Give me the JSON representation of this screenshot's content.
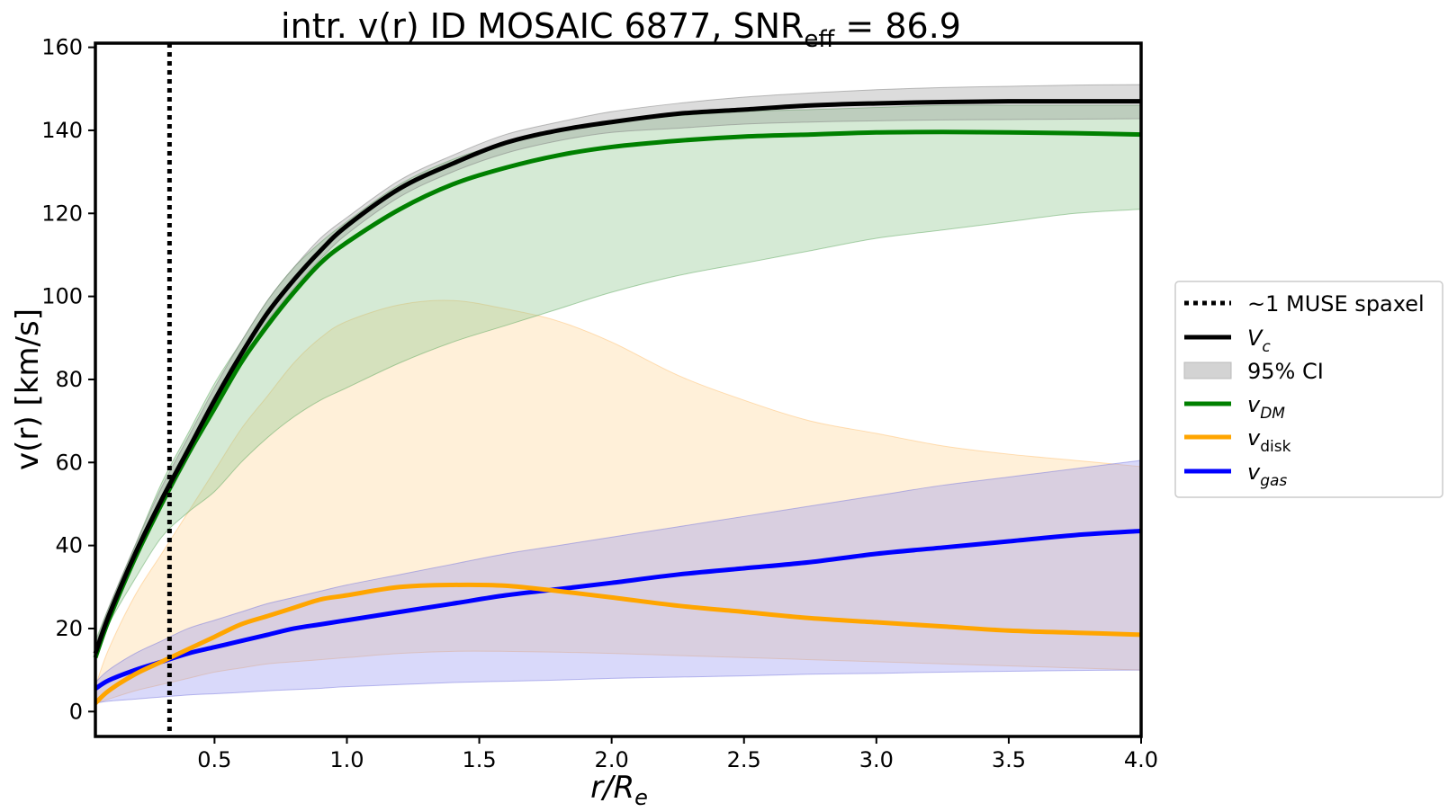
{
  "chart_data": {
    "type": "line",
    "title": "intr. v(r) ID MOSAIC 6877, SNR",
    "title_sub": "eff",
    "title_tail": " = 86.9",
    "xlabel_main": "r/R",
    "xlabel_sub": "e",
    "ylabel": "v(r) [km/s]",
    "xlim": [
      0.05,
      4.0
    ],
    "ylim": [
      -6,
      161
    ],
    "xticks": [
      0.5,
      1.0,
      1.5,
      2.0,
      2.5,
      3.0,
      3.5,
      4.0
    ],
    "xtick_labels": [
      "0.5",
      "1.0",
      "1.5",
      "2.0",
      "2.5",
      "3.0",
      "3.5",
      "4.0"
    ],
    "yticks": [
      0,
      20,
      40,
      60,
      80,
      100,
      120,
      140,
      160
    ],
    "ytick_labels": [
      "0",
      "20",
      "40",
      "60",
      "80",
      "100",
      "120",
      "140",
      "160"
    ],
    "muse_spaxel_x": 0.33,
    "x": [
      0.05,
      0.1,
      0.2,
      0.3,
      0.4,
      0.5,
      0.6,
      0.7,
      0.8,
      0.9,
      1.0,
      1.2,
      1.4,
      1.6,
      1.8,
      2.0,
      2.25,
      2.5,
      2.75,
      3.0,
      3.25,
      3.5,
      3.75,
      4.0
    ],
    "series": [
      {
        "name": "V_c",
        "key": "vc",
        "color": "#000000",
        "values": [
          14,
          23,
          38,
          51,
          63,
          75,
          86,
          96,
          104,
          111,
          117,
          126,
          132,
          137,
          140,
          142,
          144,
          145,
          146,
          146.5,
          146.8,
          147,
          147,
          147
        ],
        "ci_low": [
          13,
          21,
          36,
          49,
          61,
          73,
          84,
          94,
          102,
          109,
          115,
          124,
          130,
          134.5,
          137.5,
          139.5,
          140.5,
          141.5,
          142,
          142.3,
          142.5,
          142.6,
          142.7,
          142.8
        ],
        "ci_high": [
          16,
          25,
          40,
          54,
          66,
          78,
          89,
          99,
          107,
          114,
          119,
          128,
          134,
          139,
          142,
          144.5,
          146.5,
          148,
          149,
          149.8,
          150.3,
          150.6,
          150.9,
          151
        ]
      },
      {
        "name": "v_DM",
        "key": "vdm",
        "color": "#008000",
        "band_color": "#90c890",
        "values": [
          13,
          22,
          37,
          50,
          62,
          73,
          84,
          93,
          101,
          108,
          113,
          121,
          127,
          131,
          134,
          136,
          137.5,
          138.5,
          139,
          139.5,
          139.6,
          139.5,
          139.3,
          139
        ],
        "ci_low": [
          13,
          21,
          32,
          42,
          48,
          53,
          60,
          66,
          71,
          75,
          78,
          84,
          89,
          93,
          97,
          101,
          105,
          108,
          111,
          114,
          116,
          118,
          120,
          121
        ],
        "ci_high": [
          17,
          25,
          40,
          55,
          67,
          79,
          89,
          99,
          107,
          113,
          118,
          127,
          133,
          137,
          140,
          142,
          143.5,
          144.5,
          145,
          145.5,
          146,
          146,
          146,
          146
        ]
      },
      {
        "name": "v_disk",
        "key": "vdisk",
        "color": "#ffa500",
        "band_color": "#fde3b8",
        "values": [
          2,
          5,
          9,
          12,
          15,
          18,
          21,
          23,
          25,
          27,
          28,
          30,
          30.5,
          30.3,
          29,
          27.5,
          25.5,
          24,
          22.5,
          21.5,
          20.5,
          19.5,
          19,
          18.5
        ],
        "ci_low": [
          2,
          3,
          5,
          6.5,
          8,
          9.5,
          10.5,
          11.5,
          12,
          12.5,
          13,
          14,
          14.5,
          14.5,
          14.3,
          14,
          13.5,
          13,
          12.5,
          12,
          11.5,
          11,
          10.5,
          10
        ],
        "ci_high": [
          6,
          15,
          28,
          38,
          48,
          58,
          68,
          76,
          84,
          90,
          94,
          98,
          99,
          97,
          94,
          89,
          81,
          75,
          70,
          67,
          64,
          62,
          60.5,
          59
        ]
      },
      {
        "name": "v_gas",
        "key": "vgas",
        "color": "#0000ff",
        "band_color": "#8888ee",
        "values": [
          5.5,
          7.5,
          10,
          12,
          14,
          15.5,
          17,
          18.5,
          20,
          21,
          22,
          24,
          26,
          28,
          29.5,
          31,
          33,
          34.5,
          36,
          38,
          39.5,
          41,
          42.5,
          43.5
        ],
        "ci_low": [
          2,
          2.5,
          3,
          3.5,
          4,
          4.3,
          4.6,
          5,
          5.3,
          5.6,
          6,
          6.5,
          7,
          7.3,
          7.6,
          8,
          8.3,
          8.6,
          9,
          9.2,
          9.5,
          9.7,
          9.9,
          10
        ],
        "ci_high": [
          7,
          10,
          14,
          17,
          20,
          22,
          24,
          26,
          27.5,
          29,
          30.5,
          33,
          35.5,
          38,
          40,
          42,
          44.5,
          47,
          49.5,
          52,
          54.5,
          56.5,
          58.5,
          60.5
        ]
      }
    ],
    "legend": {
      "placement": "right",
      "items": [
        {
          "label": "~1 MUSE spaxel",
          "kind": "dotted",
          "color": "#000000"
        },
        {
          "label_main": "V",
          "label_sub": "c",
          "italic": true,
          "kind": "line",
          "color": "#000000"
        },
        {
          "label": "95% CI",
          "kind": "patch",
          "color": "#d3d3d3"
        },
        {
          "label_main": "v",
          "label_sub": "DM",
          "italic": true,
          "kind": "line",
          "color": "#008000"
        },
        {
          "label_main": "v",
          "label_sub": "disk",
          "italic": false,
          "kind": "line",
          "color": "#ffa500"
        },
        {
          "label_main": "v",
          "label_sub": "gas",
          "italic": true,
          "kind": "line",
          "color": "#0000ff"
        }
      ]
    }
  }
}
